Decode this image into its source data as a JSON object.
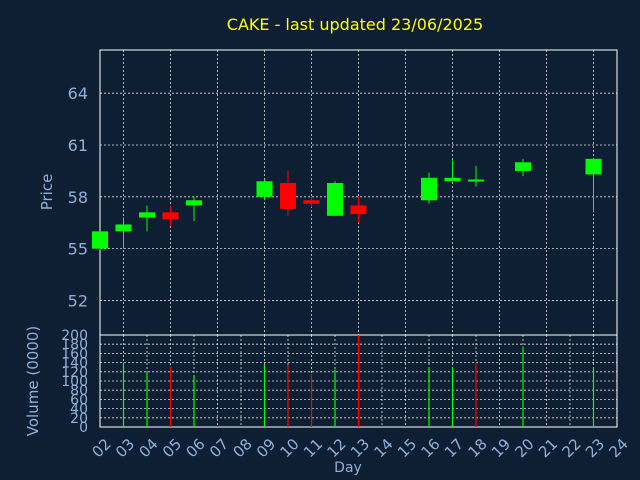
{
  "chart_data": [
    {
      "type": "candlestick",
      "title": "CAKE - last updated 23/06/2025",
      "ylabel": "Price",
      "xlabel": "",
      "ylim": [
        50,
        66.5
      ],
      "yticks": [
        52,
        55,
        58,
        61,
        64
      ],
      "grid": true,
      "colors": {
        "up": "#00ff00",
        "down": "#ff0000",
        "title": "#ffff00",
        "axis_text": "#8fb0d8",
        "background": "#0f1f33"
      },
      "candles": [
        {
          "day": "02",
          "open": 55.0,
          "high": 56.0,
          "low": 54.9,
          "close": 56.0
        },
        {
          "day": "03",
          "open": 56.0,
          "high": 56.8,
          "low": 55.0,
          "close": 56.4
        },
        {
          "day": "04",
          "open": 56.8,
          "high": 57.5,
          "low": 56.0,
          "close": 57.1
        },
        {
          "day": "05",
          "open": 57.1,
          "high": 57.5,
          "low": 56.3,
          "close": 56.7
        },
        {
          "day": "06",
          "open": 57.5,
          "high": 58.0,
          "low": 56.6,
          "close": 57.8
        },
        {
          "day": "09",
          "open": 58.0,
          "high": 59.0,
          "low": 57.8,
          "close": 58.9
        },
        {
          "day": "10",
          "open": 58.8,
          "high": 59.5,
          "low": 56.9,
          "close": 57.3
        },
        {
          "day": "11",
          "open": 57.8,
          "high": 58.0,
          "low": 57.4,
          "close": 57.6
        },
        {
          "day": "12",
          "open": 56.9,
          "high": 58.9,
          "low": 56.9,
          "close": 58.8
        },
        {
          "day": "13",
          "open": 57.5,
          "high": 58.0,
          "low": 56.5,
          "close": 57.0
        },
        {
          "day": "16",
          "open": 57.8,
          "high": 59.4,
          "low": 57.6,
          "close": 59.1
        },
        {
          "day": "17",
          "open": 58.9,
          "high": 60.1,
          "low": 58.9,
          "close": 59.1
        },
        {
          "day": "18",
          "open": 59.0,
          "high": 59.8,
          "low": 58.6,
          "close": 59.0
        },
        {
          "day": "20",
          "open": 59.5,
          "high": 60.2,
          "low": 59.2,
          "close": 60.0
        },
        {
          "day": "23",
          "open": 59.3,
          "high": 60.2,
          "low": 57.1,
          "close": 60.2
        }
      ]
    },
    {
      "type": "bar",
      "ylabel": "Volume (0000)",
      "xlabel": "Day",
      "ylim": [
        0,
        200
      ],
      "yticks": [
        0,
        20,
        40,
        60,
        80,
        100,
        120,
        140,
        160,
        180,
        200
      ],
      "x_tick_labels": [
        "02",
        "03",
        "04",
        "05",
        "06",
        "07",
        "08",
        "09",
        "10",
        "11",
        "12",
        "13",
        "14",
        "15",
        "16",
        "17",
        "18",
        "19",
        "20",
        "21",
        "22",
        "23",
        "24"
      ],
      "grid": true,
      "series": [
        {
          "day": "03",
          "value": 140,
          "color": "#00ff00"
        },
        {
          "day": "04",
          "value": 120,
          "color": "#00ff00"
        },
        {
          "day": "05",
          "value": 130,
          "color": "#ff0000"
        },
        {
          "day": "06",
          "value": 110,
          "color": "#00ff00"
        },
        {
          "day": "09",
          "value": 135,
          "color": "#00ff00"
        },
        {
          "day": "10",
          "value": 135,
          "color": "#ff0000"
        },
        {
          "day": "11",
          "value": 115,
          "color": "#ff0000"
        },
        {
          "day": "12",
          "value": 125,
          "color": "#00ff00"
        },
        {
          "day": "13",
          "value": 200,
          "color": "#ff0000"
        },
        {
          "day": "16",
          "value": 130,
          "color": "#00ff00"
        },
        {
          "day": "17",
          "value": 130,
          "color": "#00ff00"
        },
        {
          "day": "18",
          "value": 140,
          "color": "#ff0000"
        },
        {
          "day": "20",
          "value": 175,
          "color": "#00ff00"
        },
        {
          "day": "23",
          "value": 130,
          "color": "#00ff00"
        }
      ]
    }
  ]
}
